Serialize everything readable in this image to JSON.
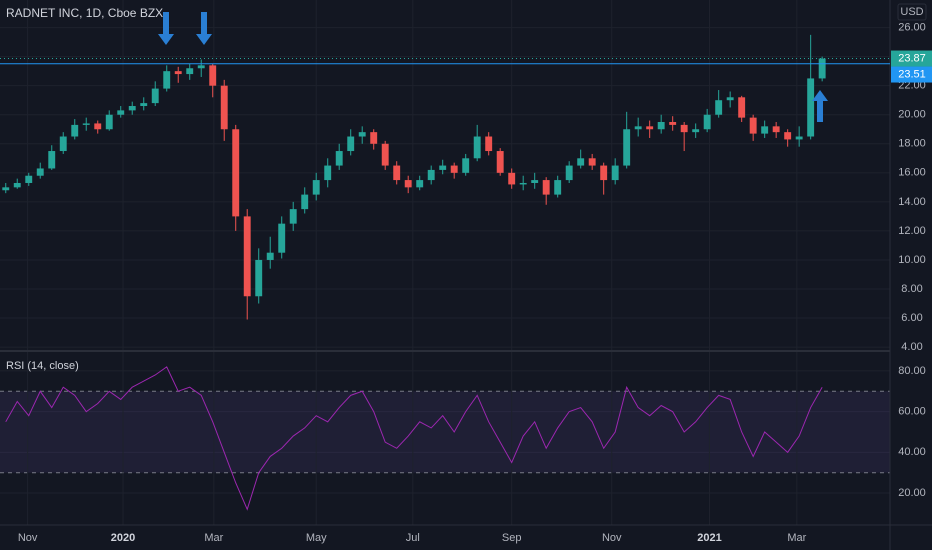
{
  "chart_data": [
    {
      "type": "candlestick",
      "title": "RADNET INC, 1D, Cboe BZX",
      "currency": "USD",
      "up_color": "#26a69a",
      "down_color": "#ef5350",
      "candles": [
        [
          14.8,
          15.3,
          14.6,
          15.0
        ],
        [
          15.0,
          15.6,
          14.9,
          15.3
        ],
        [
          15.3,
          16.0,
          15.1,
          15.8
        ],
        [
          15.8,
          16.7,
          15.6,
          16.3
        ],
        [
          16.3,
          17.9,
          16.2,
          17.5
        ],
        [
          17.5,
          18.8,
          17.3,
          18.5
        ],
        [
          18.5,
          19.7,
          18.3,
          19.3
        ],
        [
          19.3,
          19.8,
          18.9,
          19.4
        ],
        [
          19.4,
          19.6,
          18.7,
          19.0
        ],
        [
          19.0,
          20.3,
          18.9,
          20.0
        ],
        [
          20.0,
          20.6,
          19.8,
          20.3
        ],
        [
          20.3,
          20.9,
          20.0,
          20.6
        ],
        [
          20.6,
          21.2,
          20.3,
          20.8
        ],
        [
          20.8,
          22.3,
          20.6,
          21.8
        ],
        [
          21.8,
          23.4,
          21.6,
          23.0
        ],
        [
          23.0,
          23.3,
          22.2,
          22.8
        ],
        [
          22.8,
          23.5,
          22.4,
          23.2
        ],
        [
          23.2,
          23.8,
          22.6,
          23.4
        ],
        [
          23.4,
          23.5,
          21.2,
          22.0
        ],
        [
          22.0,
          22.4,
          18.2,
          19.0
        ],
        [
          19.0,
          19.3,
          12.0,
          13.0
        ],
        [
          13.0,
          13.5,
          5.9,
          7.5
        ],
        [
          7.5,
          10.8,
          7.0,
          10.0
        ],
        [
          10.0,
          11.6,
          9.4,
          10.5
        ],
        [
          10.5,
          13.0,
          10.1,
          12.5
        ],
        [
          12.5,
          14.0,
          12.0,
          13.5
        ],
        [
          13.5,
          15.0,
          13.2,
          14.5
        ],
        [
          14.5,
          16.0,
          14.1,
          15.5
        ],
        [
          15.5,
          17.0,
          15.0,
          16.5
        ],
        [
          16.5,
          18.0,
          16.2,
          17.5
        ],
        [
          17.5,
          19.0,
          17.2,
          18.5
        ],
        [
          18.5,
          19.2,
          18.0,
          18.8
        ],
        [
          18.8,
          19.0,
          17.6,
          18.0
        ],
        [
          18.0,
          18.2,
          16.2,
          16.5
        ],
        [
          16.5,
          16.8,
          15.2,
          15.5
        ],
        [
          15.5,
          15.8,
          14.6,
          15.0
        ],
        [
          15.0,
          15.8,
          14.8,
          15.5
        ],
        [
          15.5,
          16.5,
          15.2,
          16.2
        ],
        [
          16.2,
          16.9,
          15.9,
          16.5
        ],
        [
          16.5,
          16.7,
          15.6,
          16.0
        ],
        [
          16.0,
          17.3,
          15.8,
          17.0
        ],
        [
          17.0,
          19.3,
          16.8,
          18.5
        ],
        [
          18.5,
          18.8,
          17.2,
          17.5
        ],
        [
          17.5,
          17.7,
          15.8,
          16.0
        ],
        [
          16.0,
          16.3,
          14.9,
          15.2
        ],
        [
          15.2,
          15.8,
          14.8,
          15.3
        ],
        [
          15.3,
          16.0,
          14.9,
          15.5
        ],
        [
          15.5,
          15.7,
          13.8,
          14.5
        ],
        [
          14.5,
          15.8,
          14.3,
          15.5
        ],
        [
          15.5,
          16.8,
          15.3,
          16.5
        ],
        [
          16.5,
          17.6,
          16.3,
          17.0
        ],
        [
          17.0,
          17.3,
          16.2,
          16.5
        ],
        [
          16.5,
          16.7,
          14.5,
          15.5
        ],
        [
          15.5,
          17.0,
          15.2,
          16.5
        ],
        [
          16.5,
          20.2,
          16.3,
          19.0
        ],
        [
          19.0,
          19.8,
          18.5,
          19.2
        ],
        [
          19.2,
          19.6,
          18.4,
          19.0
        ],
        [
          19.0,
          20.0,
          18.7,
          19.5
        ],
        [
          19.5,
          19.9,
          18.9,
          19.3
        ],
        [
          19.3,
          19.5,
          17.5,
          18.8
        ],
        [
          18.8,
          19.4,
          18.4,
          19.0
        ],
        [
          19.0,
          20.4,
          18.8,
          20.0
        ],
        [
          20.0,
          21.7,
          19.8,
          21.0
        ],
        [
          21.0,
          21.6,
          20.5,
          21.2
        ],
        [
          21.2,
          21.3,
          19.5,
          19.8
        ],
        [
          19.8,
          20.0,
          18.2,
          18.7
        ],
        [
          18.7,
          19.6,
          18.4,
          19.2
        ],
        [
          19.2,
          19.5,
          18.4,
          18.8
        ],
        [
          18.8,
          19.0,
          17.8,
          18.3
        ],
        [
          18.3,
          19.2,
          17.8,
          18.5
        ],
        [
          18.5,
          25.5,
          18.3,
          22.5
        ],
        [
          22.5,
          24.0,
          22.3,
          23.87
        ]
      ],
      "xlim": [
        -0.5,
        76.9
      ],
      "ylim": [
        3.8,
        27.9
      ],
      "yticks": [
        {
          "value": 4,
          "label": "4.00"
        },
        {
          "value": 6,
          "label": "6.00"
        },
        {
          "value": 8,
          "label": "8.00"
        },
        {
          "value": 10,
          "label": "10.00"
        },
        {
          "value": 12,
          "label": "12.00"
        },
        {
          "value": 14,
          "label": "14.00"
        },
        {
          "value": 16,
          "label": "16.00"
        },
        {
          "value": 18,
          "label": "18.00"
        },
        {
          "value": 20,
          "label": "20.00"
        },
        {
          "value": 22,
          "label": "22.00"
        },
        {
          "value": 24,
          "label": "24.00"
        },
        {
          "value": 26,
          "label": "26.00"
        }
      ],
      "last_price": {
        "value": 23.87,
        "label": "23.87"
      },
      "hline": {
        "value": 23.51,
        "label": "23.51",
        "color": "#2196f3"
      }
    },
    {
      "type": "line",
      "title": "RSI (14, close)",
      "color": "#9c27b0",
      "values": [
        55,
        65,
        58,
        70,
        62,
        72,
        68,
        60,
        64,
        70,
        66,
        72,
        75,
        78,
        82,
        70,
        72,
        68,
        55,
        40,
        25,
        12,
        30,
        38,
        42,
        48,
        52,
        58,
        55,
        62,
        68,
        70,
        60,
        45,
        42,
        48,
        55,
        52,
        58,
        50,
        60,
        68,
        55,
        45,
        35,
        48,
        55,
        42,
        52,
        60,
        62,
        55,
        42,
        50,
        72,
        62,
        58,
        63,
        60,
        50,
        55,
        62,
        68,
        66,
        50,
        38,
        50,
        45,
        40,
        48,
        62,
        72
      ],
      "xlim": [
        -0.5,
        76.9
      ],
      "ylim": [
        4.3,
        89.3
      ],
      "yticks": [
        {
          "value": 20,
          "label": "20.00"
        },
        {
          "value": 40,
          "label": "40.00"
        },
        {
          "value": 60,
          "label": "60.00"
        },
        {
          "value": 80,
          "label": "80.00"
        }
      ],
      "band": [
        30,
        70
      ],
      "xticks": [
        {
          "value": 1.9,
          "label": "Nov"
        },
        {
          "value": 10.2,
          "label": "2020"
        },
        {
          "value": 18.1,
          "label": "Mar"
        },
        {
          "value": 27,
          "label": "May"
        },
        {
          "value": 35.4,
          "label": "Jul"
        },
        {
          "value": 44,
          "label": "Sep"
        },
        {
          "value": 52.7,
          "label": "Nov"
        },
        {
          "value": 61.2,
          "label": "2021"
        },
        {
          "value": 68.8,
          "label": "Mar"
        }
      ]
    }
  ]
}
